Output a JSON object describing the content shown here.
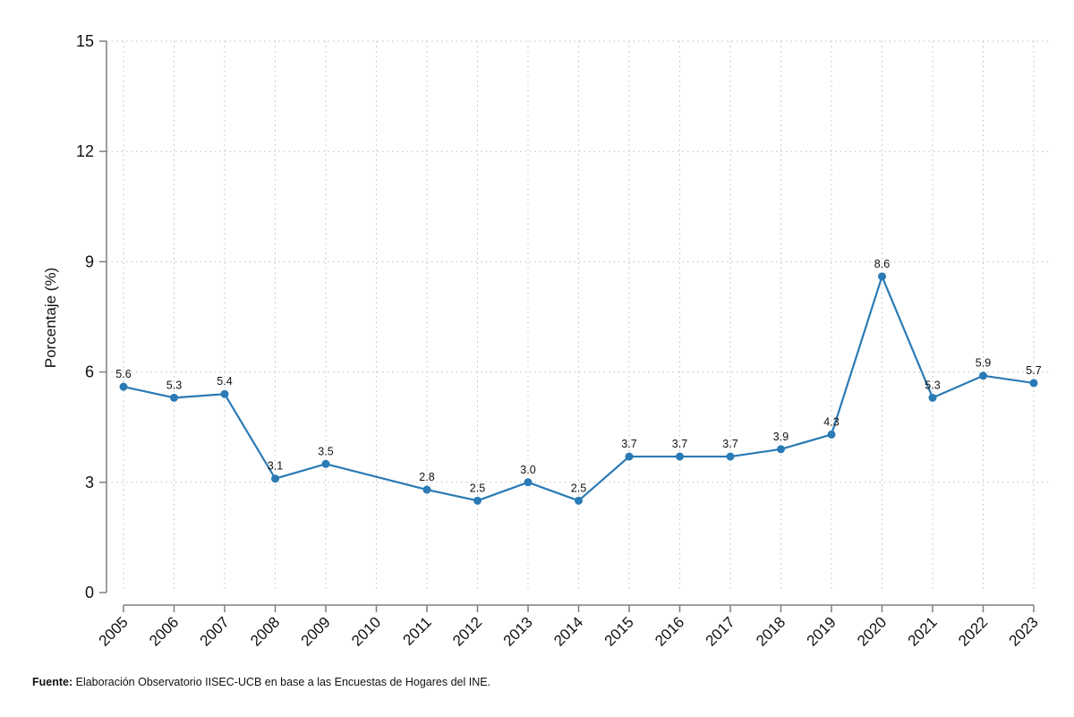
{
  "chart_data": {
    "type": "line",
    "ylabel": "Porcentaje (%)",
    "xlabel": "",
    "ylim": [
      0,
      15
    ],
    "yticks": [
      "0",
      "3",
      "6",
      "9",
      "12",
      "15"
    ],
    "grid": true,
    "categories": [
      "2005",
      "2006",
      "2007",
      "2008",
      "2009",
      "2010",
      "2011",
      "2012",
      "2013",
      "2014",
      "2015",
      "2016",
      "2017",
      "2018",
      "2019",
      "2020",
      "2021",
      "2022",
      "2023"
    ],
    "series": [
      {
        "color": "#2a7ab5",
        "points": [
          {
            "x": "2005",
            "y": 5.6,
            "label": "5.6"
          },
          {
            "x": "2006",
            "y": 5.3,
            "label": "5.3"
          },
          {
            "x": "2007",
            "y": 5.4,
            "label": "5.4"
          },
          {
            "x": "2008",
            "y": 3.1,
            "label": "3.1"
          },
          {
            "x": "2009",
            "y": 3.5,
            "label": "3.5"
          },
          {
            "x": "2011",
            "y": 2.8,
            "label": "2.8"
          },
          {
            "x": "2012",
            "y": 2.5,
            "label": "2.5"
          },
          {
            "x": "2013",
            "y": 3.0,
            "label": "3.0"
          },
          {
            "x": "2014",
            "y": 2.5,
            "label": "2.5"
          },
          {
            "x": "2015",
            "y": 3.7,
            "label": "3.7"
          },
          {
            "x": "2016",
            "y": 3.7,
            "label": "3.7"
          },
          {
            "x": "2017",
            "y": 3.7,
            "label": "3.7"
          },
          {
            "x": "2018",
            "y": 3.9,
            "label": "3.9"
          },
          {
            "x": "2019",
            "y": 4.3,
            "label": "4.3"
          },
          {
            "x": "2020",
            "y": 8.6,
            "label": "8.6"
          },
          {
            "x": "2021",
            "y": 5.3,
            "label": "5.3"
          },
          {
            "x": "2022",
            "y": 5.9,
            "label": "5.9"
          },
          {
            "x": "2023",
            "y": 5.7,
            "label": "5.7"
          }
        ]
      }
    ]
  },
  "footnote": {
    "label": "Fuente:",
    "text": " Elaboración Observatorio IISEC-UCB en base a las Encuestas de Hogares del INE."
  }
}
